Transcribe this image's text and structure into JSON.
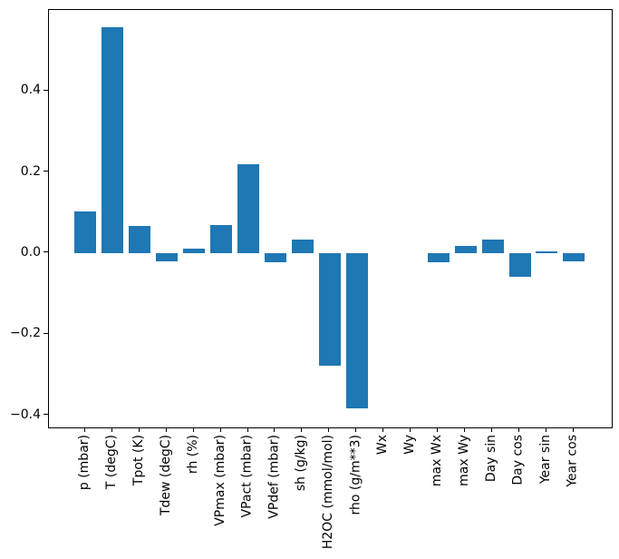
{
  "chart_data": {
    "type": "bar",
    "title": "",
    "xlabel": "",
    "ylabel": "",
    "grid": false,
    "legend_position": "none",
    "bar_color": "#1f77b4",
    "axis_color": "#000000",
    "background_color": "#ffffff",
    "categories": [
      "p (mbar)",
      "T (degC)",
      "Tpot (K)",
      "Tdew (degC)",
      "rh (%)",
      "VPmax (mbar)",
      "VPact (mbar)",
      "VPdef (mbar)",
      "sh (g/kg)",
      "H2OC (mmol/mol)",
      "rho (g/m**3)",
      "Wx",
      "Wy",
      "max Wx",
      "max Wy",
      "Day sin",
      "Day cos",
      "Year sin",
      "Year cos"
    ],
    "values": [
      0.102,
      0.557,
      0.066,
      -0.021,
      0.012,
      0.069,
      0.22,
      -0.022,
      0.034,
      -0.278,
      -0.384,
      0.0,
      0.0,
      -0.022,
      0.017,
      0.034,
      -0.059,
      0.004,
      -0.02
    ],
    "y_ticks": [
      0.4,
      0.2,
      0.0,
      -0.2,
      -0.4
    ],
    "y_tick_labels": [
      "0.4",
      "0.2",
      "0.0",
      "−0.2",
      "−0.4"
    ],
    "ylim": [
      -0.43,
      0.6
    ],
    "bar_rel_width": 0.8
  }
}
